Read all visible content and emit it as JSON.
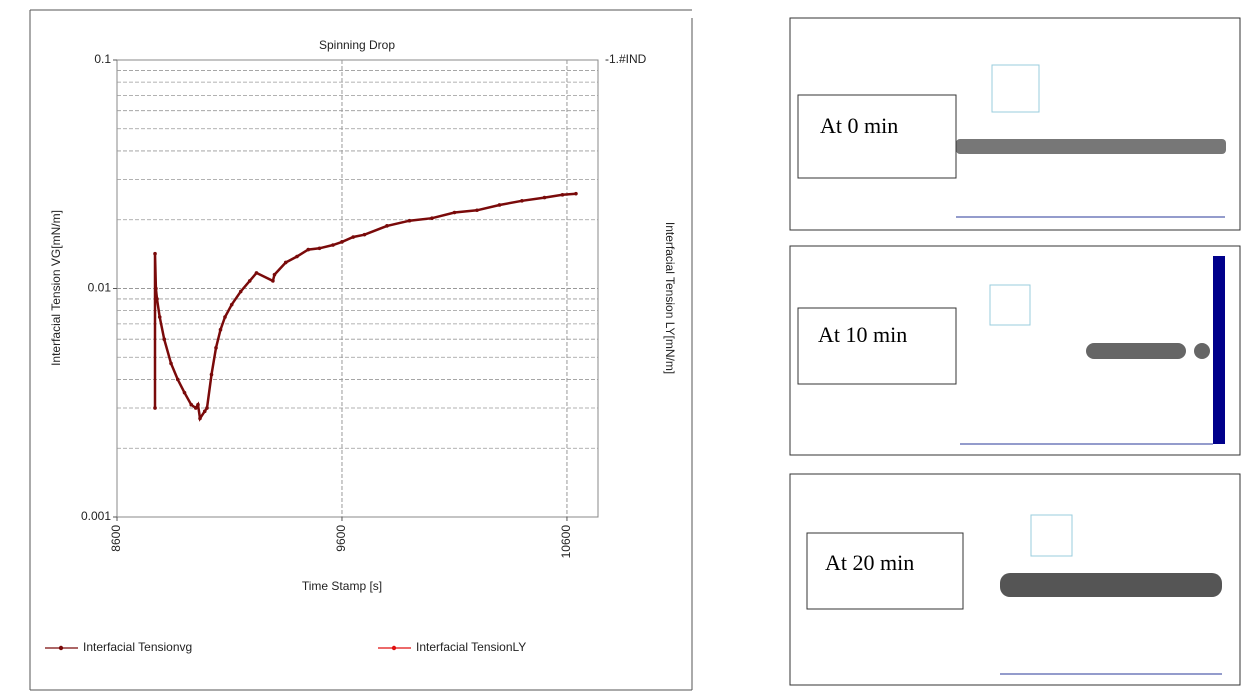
{
  "chart_data": {
    "type": "line",
    "title": "Spinning Drop",
    "x_label": "Time Stamp [s]",
    "y_label": "Interfacial Tension VG[mN/m]",
    "y2_label": "Interfacial Tension LY[mN/m]",
    "y2_top_label": "-1.#IND",
    "log_y": true,
    "grid": true,
    "xlim": [
      8600,
      10738
    ],
    "xticks": [
      8600,
      9600,
      10600
    ],
    "ylim": [
      0.001,
      0.1
    ],
    "yticks": [
      0.001,
      0.01,
      0.1
    ],
    "minor_yticks": [
      0.002,
      0.003,
      0.004,
      0.005,
      0.006,
      0.007,
      0.008,
      0.009,
      0.02,
      0.03,
      0.04,
      0.05,
      0.06,
      0.07,
      0.08,
      0.09
    ],
    "series": [
      {
        "name": "Interfacial Tensionvg",
        "color": "#7a0a0a",
        "x": [
          8769,
          8769,
          8773,
          8778,
          8790,
          8810,
          8840,
          8870,
          8900,
          8930,
          8950,
          8960,
          8969,
          8990,
          9000,
          9020,
          9040,
          9060,
          9080,
          9110,
          9150,
          9190,
          9220,
          9293,
          9300,
          9350,
          9400,
          9450,
          9500,
          9560,
          9600,
          9650,
          9700,
          9800,
          9900,
          10000,
          10100,
          10200,
          10300,
          10400,
          10500,
          10580,
          10640
        ],
        "values": [
          0.003,
          0.0142,
          0.01,
          0.009,
          0.0075,
          0.006,
          0.0047,
          0.004,
          0.0035,
          0.0031,
          0.003,
          0.0031,
          0.0027,
          0.0029,
          0.003,
          0.0042,
          0.0055,
          0.0066,
          0.0075,
          0.0085,
          0.0097,
          0.0108,
          0.0117,
          0.0108,
          0.0115,
          0.013,
          0.0138,
          0.0148,
          0.015,
          0.0155,
          0.016,
          0.0168,
          0.0172,
          0.0188,
          0.0198,
          0.0203,
          0.0215,
          0.022,
          0.0232,
          0.0242,
          0.025,
          0.0257,
          0.026
        ]
      },
      {
        "name": "Interfacial TensionLY",
        "color": "#e01010",
        "x": [],
        "values": []
      }
    ]
  },
  "panels": [
    {
      "label": "At 0 min"
    },
    {
      "label": "At 10 min"
    },
    {
      "label": "At 20 min"
    }
  ]
}
